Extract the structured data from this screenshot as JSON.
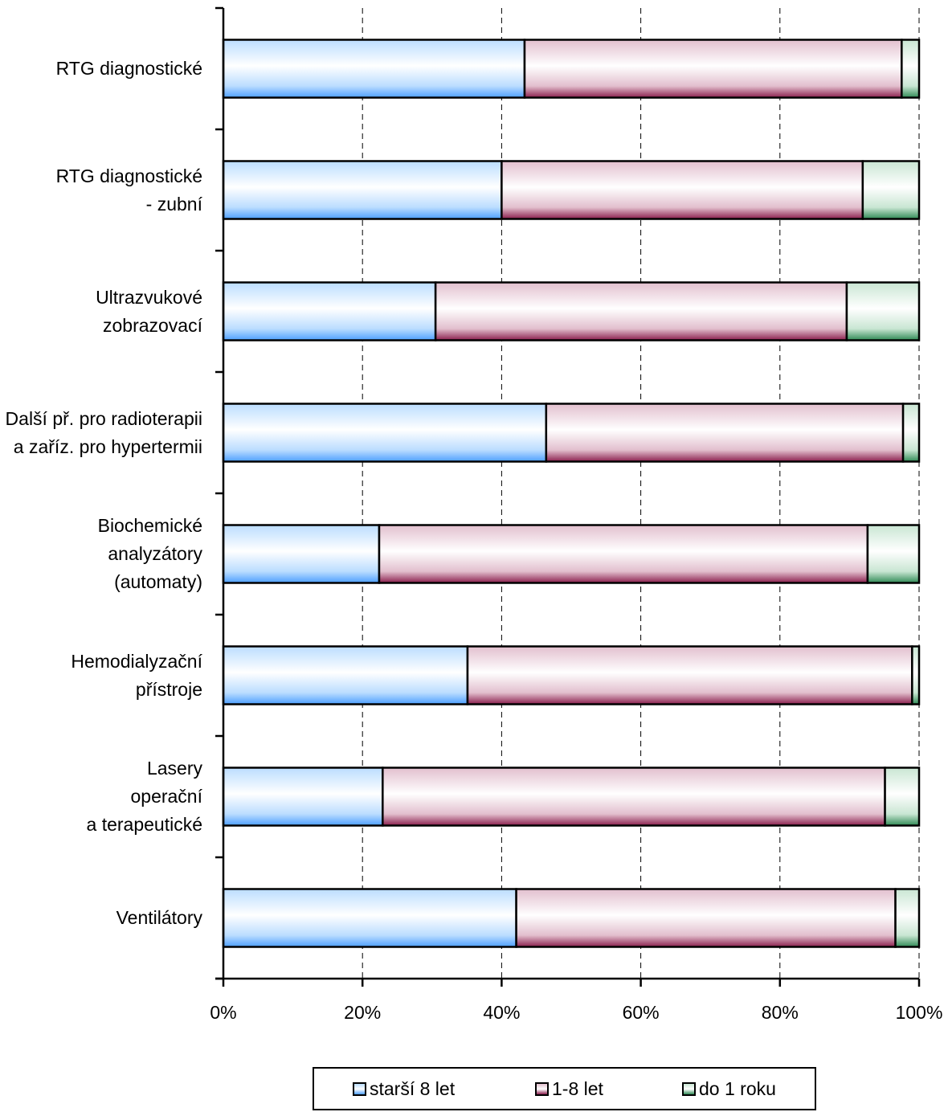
{
  "chart_data": {
    "type": "bar",
    "orientation": "horizontal",
    "stacked": true,
    "percent": true,
    "categories": [
      "RTG diagnostické",
      "RTG diagnostické\n- zubní",
      "Ultrazvukové\nzobrazovací",
      "Další př. pro radioterapii\na zaříz. pro hypertermii",
      "Biochemické\nanalyzátory\n(automaty)",
      "Hemodialyzační\npřístroje",
      "Lasery\noperační\na terapeutické",
      "Ventilátory"
    ],
    "series": [
      {
        "name": "starší 8 let",
        "values": [
          43.3,
          40.0,
          30.5,
          46.4,
          22.4,
          35.1,
          22.9,
          42.1
        ]
      },
      {
        "name": "1-8 let",
        "values": [
          54.2,
          51.9,
          59.1,
          51.3,
          70.2,
          63.9,
          72.2,
          54.5
        ]
      },
      {
        "name": "do 1 roku",
        "values": [
          2.5,
          8.1,
          10.4,
          2.3,
          7.4,
          1.0,
          4.9,
          3.4
        ]
      }
    ],
    "xlim": [
      0,
      100
    ],
    "xticks": [
      "0%",
      "20%",
      "40%",
      "60%",
      "80%",
      "100%"
    ],
    "grid": "vertical dashed",
    "legend": "bottom",
    "colors": {
      "starší 8 let": [
        "#ffffff",
        "#bbddff",
        "#4d9fff"
      ],
      "1-8 let": [
        "#ffffff",
        "#e2bfce",
        "#8b1f4d"
      ],
      "do 1 roku": [
        "#ffffff",
        "#c9e6d3",
        "#2f8a55"
      ]
    }
  }
}
